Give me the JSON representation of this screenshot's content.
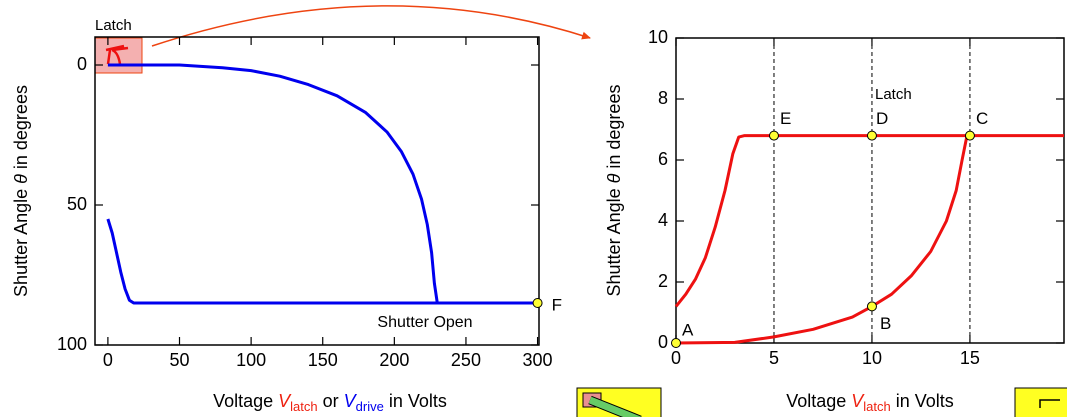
{
  "chart_data": [
    {
      "type": "line",
      "ylabel": [
        "Shutter Angle ",
        "θ",
        " in degrees"
      ],
      "xlabel": [
        "Voltage  ",
        "V",
        "latch",
        " or ",
        "V",
        "drive",
        "  in Volts"
      ],
      "annotation": "Latch",
      "xlim": [
        -9,
        301
      ],
      "ylim": [
        100,
        -10
      ],
      "xticks": [
        0,
        50,
        100,
        150,
        200,
        250,
        300
      ],
      "yticks": [
        0,
        50,
        100
      ],
      "series": [
        {
          "name": "Shutter Open",
          "color": "#0000ee",
          "x": [
            0,
            3,
            6,
            9,
            12,
            15,
            18,
            300,
            null,
            0,
            50,
            80,
            100,
            120,
            140,
            160,
            180,
            195,
            205,
            213,
            219,
            223,
            226,
            228,
            230
          ],
          "values": [
            55,
            60,
            67,
            74,
            80,
            84,
            85,
            85,
            null,
            0,
            0,
            1,
            2,
            4,
            7,
            11,
            17,
            24,
            31,
            39,
            48,
            57,
            67,
            78,
            85
          ]
        }
      ],
      "points": [
        {
          "label": "F",
          "x": 300,
          "y": 85
        }
      ]
    },
    {
      "type": "line",
      "ylabel": [
        "Shutter Angle ",
        "θ",
        " in degrees"
      ],
      "xlabel": [
        "Voltage  ",
        "V",
        "latch",
        "  in Volts"
      ],
      "annotation": "Latch",
      "xlim": [
        0,
        19.8
      ],
      "ylim": [
        0,
        10
      ],
      "xticks": [
        0,
        5,
        10,
        15
      ],
      "yticks": [
        0,
        2,
        4,
        6,
        8,
        10
      ],
      "vlines": [
        5,
        10,
        15
      ],
      "series": [
        {
          "name": "Latch",
          "color": "#ee1111",
          "x": [
            0,
            3,
            5,
            7,
            9,
            10,
            11,
            12,
            13,
            13.8,
            14.3,
            14.6,
            14.85,
            19.8,
            null,
            0,
            0.5,
            1,
            1.5,
            2,
            2.5,
            2.9,
            3.2,
            3.5,
            15
          ],
          "values": [
            0,
            0.02,
            0.2,
            0.45,
            0.85,
            1.2,
            1.6,
            2.2,
            3.0,
            4,
            5,
            6,
            6.8,
            6.8,
            null,
            1.2,
            1.6,
            2.1,
            2.8,
            3.8,
            5.0,
            6.2,
            6.75,
            6.8,
            6.8
          ]
        }
      ],
      "points": [
        {
          "label": "A",
          "x": 0,
          "y": 0
        },
        {
          "label": "B",
          "x": 10,
          "y": 1.2
        },
        {
          "label": "C",
          "x": 15,
          "y": 6.8
        },
        {
          "label": "D",
          "x": 10,
          "y": 6.8
        },
        {
          "label": "E",
          "x": 5,
          "y": 6.8
        }
      ]
    }
  ]
}
